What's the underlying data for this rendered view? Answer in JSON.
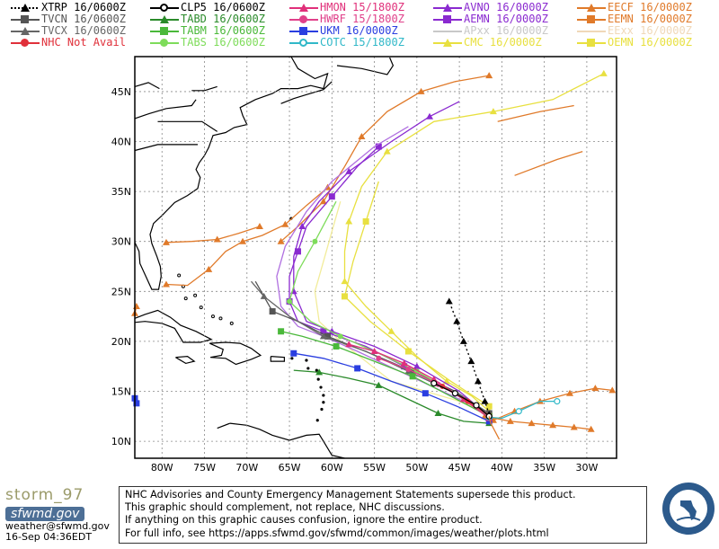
{
  "legend": [
    {
      "label": "XTRP 16/0600Z",
      "color": "#000000",
      "marker": "triangle",
      "dotted": true
    },
    {
      "label": "TVCN 16/0600Z",
      "color": "#555555",
      "marker": "square"
    },
    {
      "label": "TVCX 16/0600Z",
      "color": "#666666",
      "marker": "triangle"
    },
    {
      "label": "NHC Not Avail",
      "color": "#e0303a",
      "marker": "circle"
    },
    {
      "label": "CLP5 16/0600Z",
      "color": "#000000",
      "marker": "circle-open"
    },
    {
      "label": "TABD 16/0600Z",
      "color": "#2a8a2a",
      "marker": "triangle"
    },
    {
      "label": "TABM 16/0600Z",
      "color": "#4ab83a",
      "marker": "square"
    },
    {
      "label": "TABS 16/0600Z",
      "color": "#7edc5a",
      "marker": "circle"
    },
    {
      "label": "HMON 15/1800Z",
      "color": "#e0307a",
      "marker": "triangle"
    },
    {
      "label": "HWRF 15/1800Z",
      "color": "#e0408a",
      "marker": "circle"
    },
    {
      "label": "UKM 16/0000Z",
      "color": "#2a3ee0",
      "marker": "square"
    },
    {
      "label": "COTC 15/1800Z",
      "color": "#30b8c8",
      "marker": "circle-open"
    },
    {
      "label": "AVNO 16/0000Z",
      "color": "#8a2ad0",
      "marker": "triangle"
    },
    {
      "label": "AEMN 16/0000Z",
      "color": "#8a2ad0",
      "marker": "square"
    },
    {
      "label": "APxx 16/0000Z",
      "color": "#c8c8c8",
      "marker": "none"
    },
    {
      "label": "CMC 16/0000Z",
      "color": "#e8e040",
      "marker": "triangle"
    },
    {
      "label": "EECF 16/0000Z",
      "color": "#e07a2a",
      "marker": "triangle"
    },
    {
      "label": "EEMN 16/0000Z",
      "color": "#e07a2a",
      "marker": "square"
    },
    {
      "label": "EExx 16/0000Z",
      "color": "#f0d8b8",
      "marker": "none"
    },
    {
      "label": "OEMN 16/0000Z",
      "color": "#e8e040",
      "marker": "square"
    }
  ],
  "map": {
    "lat_labels": [
      "45N",
      "40N",
      "35N",
      "30N",
      "25N",
      "20N",
      "15N",
      "10N"
    ],
    "lon_labels": [
      "80W",
      "75W",
      "70W",
      "65W",
      "60W",
      "55W",
      "50W",
      "45W",
      "40W",
      "35W",
      "30W"
    ]
  },
  "branding": {
    "name": "storm_97",
    "org": "sfwmd.gov",
    "email": "weather@sfwmd.gov",
    "timestamp": "16-Sep 04:36EDT"
  },
  "disclaimer": [
    "NHC Advisories and County Emergency Management Statements supersede this product.",
    "This graphic should complement, not replace, NHC discussions.",
    "If anything on this graphic causes confusion, ignore the entire product.",
    "For full info, see  https://apps.sfwmd.gov/sfwmd/common/images/weather/plots.html"
  ]
}
